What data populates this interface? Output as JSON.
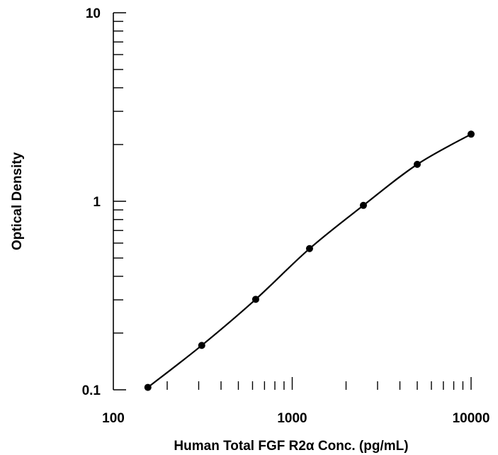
{
  "chart_data": {
    "type": "scatter",
    "title": "",
    "xlabel": "Human Total FGF R2α Conc. (pg/mL)",
    "ylabel": "Optical Density",
    "x_scale": "log",
    "y_scale": "log",
    "xlim": [
      100,
      10000
    ],
    "ylim": [
      0.1,
      10
    ],
    "x_tick_labels": [
      "100",
      "1000",
      "10000"
    ],
    "y_tick_labels": [
      "0.1",
      "1",
      "10"
    ],
    "grid": false,
    "legend": "none",
    "series": [
      {
        "x": [
          156,
          312,
          625,
          1250,
          2500,
          5000,
          10000
        ],
        "y": [
          0.103,
          0.172,
          0.302,
          0.561,
          0.951,
          1.57,
          2.27
        ],
        "fit": "smooth curve"
      }
    ]
  }
}
